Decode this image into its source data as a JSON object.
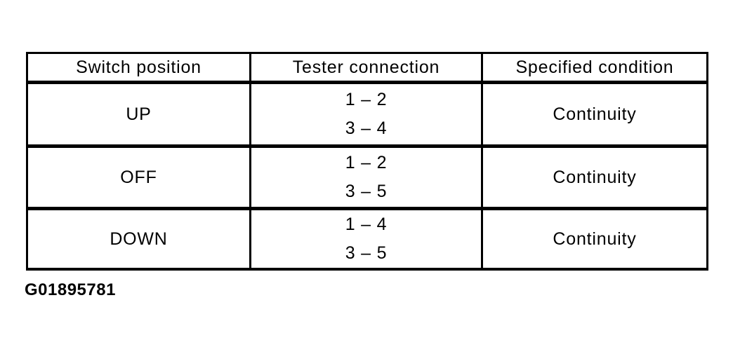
{
  "page": {
    "background_color": "#ffffff",
    "text_color": "#000000",
    "border_color": "#000000"
  },
  "table": {
    "columns": [
      {
        "label": "Switch position"
      },
      {
        "label": "Tester connection"
      },
      {
        "label": "Specified condition"
      }
    ],
    "rows": [
      {
        "switch_position": "UP",
        "tester_connection": [
          "1 – 2",
          "3 – 4"
        ],
        "specified_condition": "Continuity"
      },
      {
        "switch_position": "OFF",
        "tester_connection": [
          "1 – 2",
          "3 – 5"
        ],
        "specified_condition": "Continuity"
      },
      {
        "switch_position": "DOWN",
        "tester_connection": [
          "1 – 4",
          "3 – 5"
        ],
        "specified_condition": "Continuity"
      }
    ]
  },
  "figure_id": "G01895781"
}
